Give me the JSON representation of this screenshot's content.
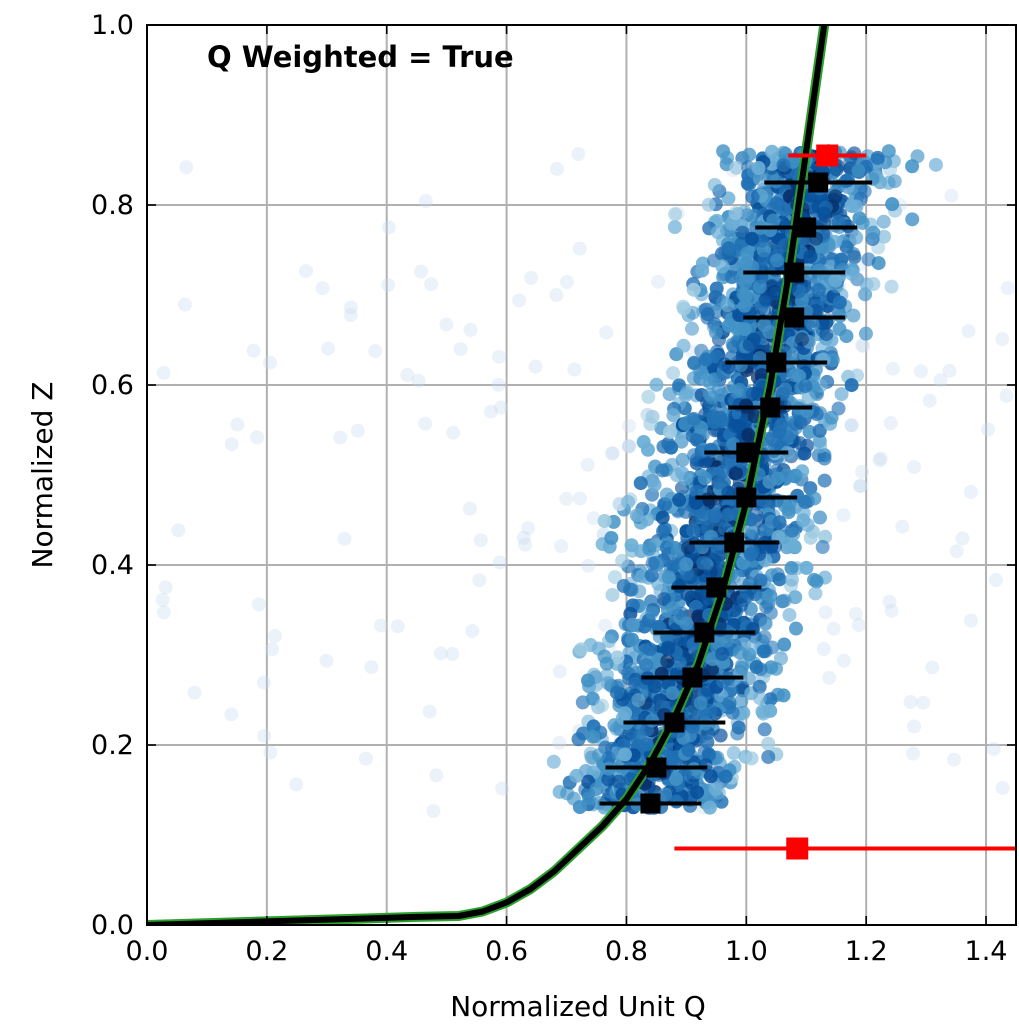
{
  "chart_data": {
    "type": "scatter",
    "title": "",
    "annotation": "Q Weighted = True",
    "xlabel": "Normalized Unit Q",
    "ylabel": "Normalized Z",
    "xlim": [
      0.0,
      1.45
    ],
    "ylim": [
      0.0,
      1.0
    ],
    "xticks": [
      0.0,
      0.2,
      0.4,
      0.6,
      0.8,
      1.0,
      1.2,
      1.4
    ],
    "yticks": [
      0.0,
      0.2,
      0.4,
      0.6,
      0.8,
      1.0
    ],
    "xtick_labels": [
      "0.0",
      "0.2",
      "0.4",
      "0.6",
      "0.8",
      "1.0",
      "1.2",
      "1.4"
    ],
    "ytick_labels": [
      "0.0",
      "0.2",
      "0.4",
      "0.6",
      "0.8",
      "1.0"
    ],
    "grid": true,
    "colors": {
      "scatter_dark": "#08306b",
      "scatter_mid": "#2171b5",
      "scatter_light": "#9ecae1",
      "binned_mean": "#000000",
      "top_marker": "#ff0000",
      "bottom_marker": "#ff0000",
      "curve_fill": "#000000",
      "curve_edge": "#2ca02c"
    },
    "scatter_cloud": {
      "description_points": "dense cloud of points, Q weighted",
      "y_range": [
        0.13,
        0.86
      ],
      "x_center_by_y": [
        [
          0.13,
          0.84
        ],
        [
          0.86,
          1.12
        ]
      ],
      "x_spread": 0.18
    },
    "binned_means": {
      "name": "binned mean",
      "x": [
        0.84,
        0.85,
        0.88,
        0.91,
        0.93,
        0.95,
        0.98,
        1.0,
        1.0,
        1.04,
        1.05,
        1.08,
        1.08,
        1.1,
        1.12
      ],
      "y": [
        0.135,
        0.175,
        0.225,
        0.275,
        0.325,
        0.375,
        0.425,
        0.475,
        0.525,
        0.575,
        0.625,
        0.675,
        0.725,
        0.775,
        0.825
      ],
      "xerr": [
        0.085,
        0.085,
        0.085,
        0.085,
        0.085,
        0.075,
        0.075,
        0.085,
        0.07,
        0.07,
        0.085,
        0.085,
        0.085,
        0.085,
        0.09
      ]
    },
    "top_marker": {
      "x": 1.135,
      "y": 0.855,
      "xerr_low": 0.065,
      "xerr_high": 0.065
    },
    "bottom_marker": {
      "x": 1.085,
      "y": 0.085,
      "xerr_low": 0.205,
      "xerr_high": 0.4
    },
    "curve": {
      "x": [
        0.0,
        0.2,
        0.35,
        0.45,
        0.52,
        0.56,
        0.6,
        0.64,
        0.68,
        0.72,
        0.76,
        0.8,
        0.84,
        0.88,
        0.92,
        0.96,
        1.0,
        1.04,
        1.07,
        1.1,
        1.13
      ],
      "y": [
        0.0,
        0.004,
        0.007,
        0.009,
        0.01,
        0.015,
        0.025,
        0.04,
        0.06,
        0.085,
        0.11,
        0.14,
        0.18,
        0.23,
        0.29,
        0.37,
        0.47,
        0.6,
        0.72,
        0.86,
        1.0
      ]
    }
  }
}
